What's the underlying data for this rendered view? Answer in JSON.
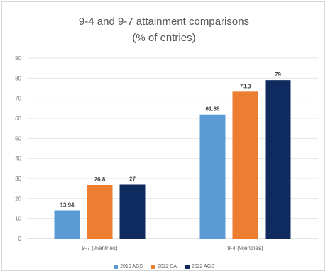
{
  "chart_data": {
    "type": "bar",
    "title": "9-4 and 9-7 attainment comparisons",
    "subtitle": "(% of entries)",
    "categories": [
      "9-7 (%entries)",
      "9-4 (%entries)"
    ],
    "series": [
      {
        "name": "2019 AGS",
        "values": [
          13.94,
          61.86
        ],
        "labels": [
          "13.94",
          "61.86"
        ],
        "color": "#5b9bd5"
      },
      {
        "name": "2022 SA",
        "values": [
          26.8,
          73.3
        ],
        "labels": [
          "26.8",
          "73.3"
        ],
        "color": "#ed7d31"
      },
      {
        "name": "2022 AGS",
        "values": [
          27,
          79
        ],
        "labels": [
          "27",
          "79"
        ],
        "color": "#0e2a5e"
      }
    ],
    "ylim": [
      0,
      90
    ],
    "yticks": [
      0,
      10,
      20,
      30,
      40,
      50,
      60,
      70,
      80,
      90
    ],
    "grid": true,
    "legend_position": "bottom"
  }
}
